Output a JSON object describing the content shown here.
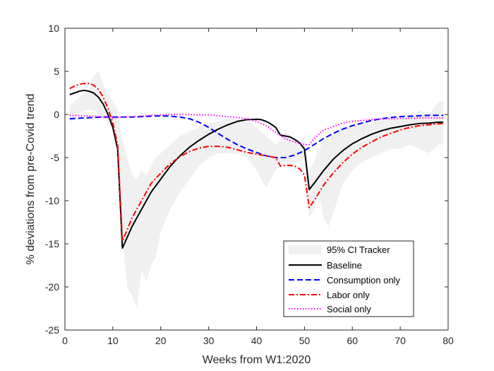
{
  "chart_data": {
    "type": "line",
    "xlabel": "Weeks from W1:2020",
    "ylabel": "% deviations from pre-Covid trend",
    "xlim": [
      0,
      80
    ],
    "ylim": [
      -25,
      10
    ],
    "xticks": [
      0,
      10,
      20,
      30,
      40,
      50,
      60,
      70,
      80
    ],
    "yticks": [
      10,
      5,
      0,
      -5,
      -10,
      -15,
      -20,
      -25
    ],
    "grid": false,
    "legend_position": "bottom-right",
    "band": {
      "name": "95% CI Tracker",
      "color": "#f0f0f0",
      "x": [
        1,
        2,
        3,
        4,
        5,
        6,
        7,
        8,
        9,
        10,
        11,
        12,
        13,
        14,
        15,
        16,
        17,
        18,
        19,
        20,
        22,
        24,
        26,
        28,
        30,
        32,
        34,
        36,
        38,
        40,
        42,
        44,
        45,
        46,
        47,
        48,
        49,
        50,
        51,
        52,
        53,
        54,
        55,
        56,
        58,
        60,
        62,
        64,
        66,
        68,
        70,
        72,
        74,
        76,
        78,
        79
      ],
      "upper": [
        1.0,
        1.5,
        2.0,
        2.5,
        3.0,
        4.5,
        5.0,
        3.5,
        2.5,
        1.5,
        0.5,
        -3.0,
        -5.0,
        -7.0,
        -7.5,
        -6.5,
        -7.0,
        -6.0,
        -5.0,
        -4.5,
        -3.5,
        -2.5,
        -2.0,
        -1.5,
        -1.0,
        -0.8,
        -0.5,
        -0.5,
        -0.8,
        -1.5,
        -2.5,
        -3.5,
        -3.0,
        -2.0,
        -2.5,
        -3.0,
        -3.5,
        -2.5,
        -6.5,
        -5.5,
        -4.0,
        -3.0,
        -2.5,
        -2.0,
        -1.5,
        -1.5,
        -1.0,
        -1.0,
        -0.5,
        -0.5,
        -0.5,
        -0.5,
        0.5,
        0.0,
        1.5,
        1.5
      ],
      "lower": [
        -1.0,
        -0.5,
        0.0,
        0.5,
        0.5,
        0.5,
        0.0,
        -0.5,
        -1.0,
        -2.0,
        -3.0,
        -14.0,
        -20.0,
        -21.0,
        -22.5,
        -18.0,
        -19.5,
        -17.5,
        -16.5,
        -13.5,
        -11.0,
        -9.0,
        -7.5,
        -6.0,
        -5.0,
        -4.5,
        -4.5,
        -4.5,
        -5.0,
        -6.5,
        -8.5,
        -6.5,
        -5.5,
        -5.5,
        -6.0,
        -5.5,
        -5.5,
        -5.0,
        -12.0,
        -11.0,
        -9.0,
        -12.0,
        -13.0,
        -11.5,
        -8.0,
        -6.5,
        -5.5,
        -5.0,
        -4.5,
        -4.0,
        -4.0,
        -3.5,
        -4.0,
        -4.5,
        -3.5,
        -3.5
      ]
    },
    "series": [
      {
        "name": "Baseline",
        "color": "#000000",
        "dash": "solid",
        "x": [
          1,
          2,
          3,
          4,
          5,
          6,
          7,
          8,
          9,
          10,
          11,
          12,
          14,
          16,
          18,
          20,
          22,
          24,
          26,
          28,
          30,
          32,
          34,
          36,
          38,
          40,
          41,
          42,
          43,
          44,
          45,
          46,
          47,
          48,
          49,
          50,
          51,
          52,
          54,
          56,
          58,
          60,
          62,
          64,
          66,
          68,
          70,
          72,
          74,
          76,
          78,
          79
        ],
        "y": [
          2.3,
          2.5,
          2.7,
          2.8,
          2.7,
          2.5,
          2.0,
          1.2,
          0.0,
          -1.5,
          -4.0,
          -15.5,
          -13.0,
          -11.0,
          -9.0,
          -7.5,
          -6.0,
          -4.8,
          -3.8,
          -3.0,
          -2.3,
          -1.7,
          -1.2,
          -0.8,
          -0.6,
          -0.55,
          -0.6,
          -0.8,
          -1.1,
          -1.5,
          -2.4,
          -2.5,
          -2.6,
          -2.9,
          -3.3,
          -4.0,
          -8.7,
          -8.0,
          -6.5,
          -5.2,
          -4.2,
          -3.4,
          -2.8,
          -2.3,
          -1.9,
          -1.6,
          -1.4,
          -1.2,
          -1.05,
          -1.0,
          -0.9,
          -0.9
        ]
      },
      {
        "name": "Consumption only",
        "color": "#0000ff",
        "dash": "dashed",
        "x": [
          1,
          4,
          6,
          8,
          10,
          12,
          14,
          16,
          18,
          20,
          22,
          24,
          26,
          28,
          30,
          32,
          34,
          36,
          38,
          40,
          42,
          44,
          46,
          48,
          50,
          52,
          54,
          56,
          58,
          60,
          62,
          64,
          66,
          68,
          70,
          72,
          74,
          76,
          78,
          79
        ],
        "y": [
          -0.5,
          -0.4,
          -0.35,
          -0.3,
          -0.3,
          -0.3,
          -0.3,
          -0.25,
          -0.2,
          -0.15,
          -0.2,
          -0.3,
          -0.5,
          -0.9,
          -1.5,
          -2.2,
          -2.9,
          -3.5,
          -4.0,
          -4.4,
          -4.8,
          -5.0,
          -5.0,
          -4.7,
          -4.2,
          -3.5,
          -2.8,
          -2.2,
          -1.7,
          -1.3,
          -1.0,
          -0.7,
          -0.5,
          -0.35,
          -0.25,
          -0.2,
          -0.15,
          -0.1,
          -0.1,
          -0.1
        ]
      },
      {
        "name": "Labor only",
        "color": "#ff0000",
        "dash": "dashdot",
        "x": [
          1,
          2,
          3,
          4,
          5,
          6,
          7,
          8,
          9,
          10,
          11,
          12,
          14,
          16,
          18,
          20,
          22,
          24,
          26,
          28,
          30,
          32,
          34,
          36,
          38,
          40,
          42,
          44,
          45,
          46,
          47,
          48,
          49,
          50,
          51,
          52,
          54,
          56,
          58,
          60,
          62,
          64,
          66,
          68,
          70,
          72,
          74,
          76,
          78,
          79
        ],
        "y": [
          3.0,
          3.3,
          3.5,
          3.6,
          3.6,
          3.4,
          2.9,
          2.0,
          0.7,
          -1.0,
          -3.5,
          -14.7,
          -12.0,
          -10.0,
          -8.0,
          -6.8,
          -5.7,
          -4.9,
          -4.3,
          -3.9,
          -3.7,
          -3.7,
          -3.8,
          -4.1,
          -4.4,
          -4.6,
          -4.8,
          -5.0,
          -6.0,
          -5.9,
          -5.9,
          -6.0,
          -6.3,
          -7.0,
          -10.8,
          -10.0,
          -8.2,
          -6.8,
          -5.6,
          -4.6,
          -3.8,
          -3.2,
          -2.6,
          -2.2,
          -1.8,
          -1.5,
          -1.3,
          -1.2,
          -1.1,
          -1.0
        ]
      },
      {
        "name": "Social only",
        "color": "#ff00ff",
        "dash": "dotted",
        "x": [
          1,
          4,
          6,
          8,
          10,
          12,
          14,
          16,
          18,
          20,
          22,
          24,
          26,
          28,
          30,
          32,
          34,
          36,
          38,
          40,
          42,
          44,
          46,
          48,
          50,
          51,
          52,
          54,
          56,
          58,
          60,
          62,
          64,
          66,
          68,
          70,
          72,
          74,
          76,
          78,
          79
        ],
        "y": [
          -0.1,
          -0.15,
          -0.2,
          -0.3,
          -0.4,
          -0.3,
          -0.25,
          -0.2,
          -0.1,
          -0.05,
          0.0,
          0.0,
          0.0,
          -0.05,
          -0.05,
          -0.15,
          -0.25,
          -0.35,
          -0.5,
          -0.8,
          -1.3,
          -2.1,
          -2.8,
          -3.2,
          -3.5,
          -3.5,
          -2.8,
          -1.8,
          -1.4,
          -1.0,
          -0.8,
          -0.7,
          -0.6,
          -0.5,
          -0.5,
          -0.45,
          -0.45,
          -0.4,
          -0.4,
          -0.4,
          -0.4
        ]
      }
    ]
  }
}
